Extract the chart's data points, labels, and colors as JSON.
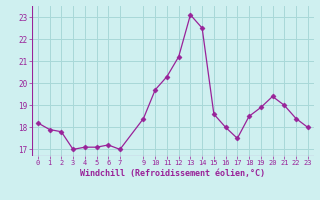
{
  "x": [
    0,
    1,
    2,
    3,
    4,
    5,
    6,
    7,
    9,
    10,
    11,
    12,
    13,
    14,
    15,
    16,
    17,
    18,
    19,
    20,
    21,
    22,
    23
  ],
  "y": [
    18.2,
    17.9,
    17.8,
    17.0,
    17.1,
    17.1,
    17.2,
    17.0,
    18.4,
    19.7,
    20.3,
    21.2,
    23.1,
    22.5,
    18.6,
    18.0,
    17.5,
    18.5,
    18.9,
    19.4,
    19.0,
    18.4,
    18.0
  ],
  "line_color": "#992299",
  "marker": "D",
  "marker_size": 2.5,
  "bg_color": "#cff0f0",
  "grid_color": "#a8d8d8",
  "xlabel": "Windchill (Refroidissement éolien,°C)",
  "xlabel_color": "#992299",
  "tick_color": "#992299",
  "ylim": [
    16.7,
    23.5
  ],
  "xlim": [
    -0.5,
    23.5
  ],
  "yticks": [
    17,
    18,
    19,
    20,
    21,
    22,
    23
  ],
  "xticks": [
    0,
    1,
    2,
    3,
    4,
    5,
    6,
    7,
    9,
    10,
    11,
    12,
    13,
    14,
    15,
    16,
    17,
    18,
    19,
    20,
    21,
    22,
    23
  ]
}
